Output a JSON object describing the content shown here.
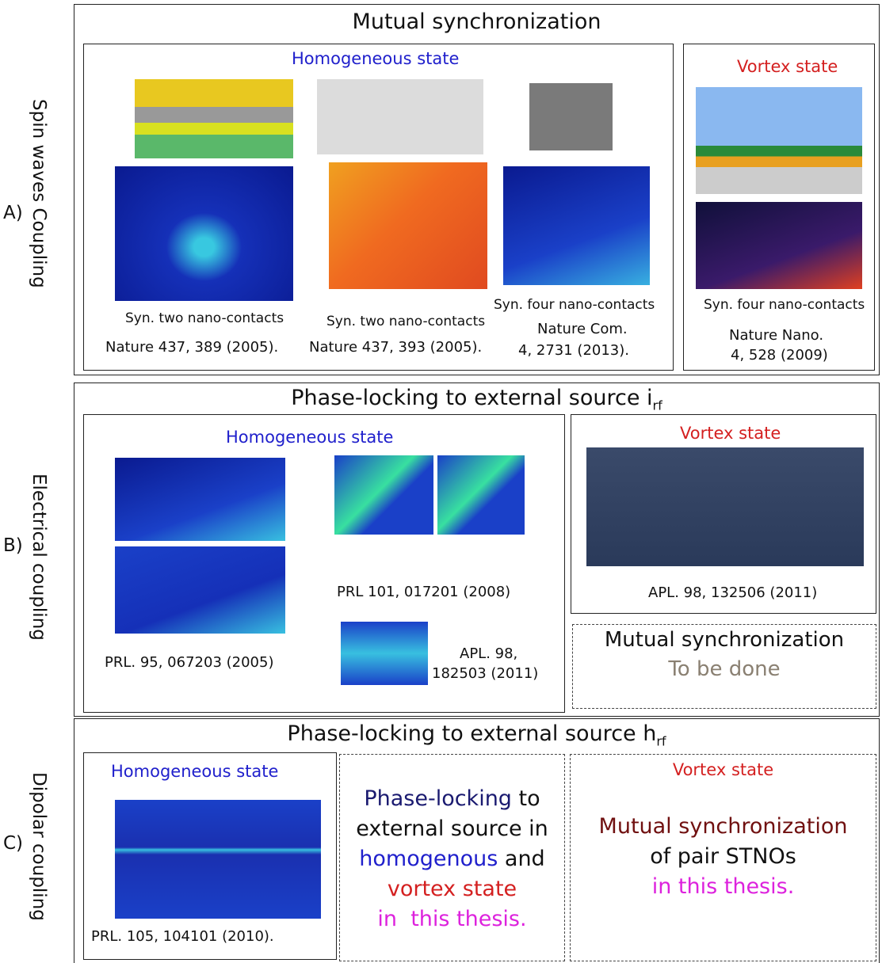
{
  "rows": [
    {
      "letter": "A)",
      "side_label": "Spin waves Coupling",
      "title": "Mutual synchronization",
      "left": {
        "heading": "Homogeneous state",
        "captions": [
          "Syn. two nano-contacts",
          "Syn. two nano-contacts",
          "Syn. four nano-contacts"
        ],
        "refs": [
          "Nature 437, 389 (2005).",
          "Nature 437, 393 (2005).",
          "Nature Com.",
          "4, 2731 (2013)."
        ]
      },
      "right": {
        "heading": "Vortex state",
        "caption": "Syn. four nano-contacts",
        "refs": [
          "Nature Nano.",
          "4, 528 (2009)"
        ]
      }
    },
    {
      "letter": "B)",
      "side_label": "Electrical coupling",
      "title": "Phase-locking to external source i",
      "title_sub": "rf",
      "left": {
        "heading": "Homogeneous state",
        "refs": [
          "PRL. 95, 067203 (2005)",
          "PRL 101, 017201 (2008)",
          "APL. 98,",
          "182503 (2011)"
        ]
      },
      "right": {
        "heading": "Vortex state",
        "refs": [
          "APL. 98, 132506 (2011)"
        ]
      },
      "todo": {
        "title": "Mutual synchronization",
        "note": "To be done"
      }
    },
    {
      "letter": "C)",
      "side_label": "Dipolar coupling",
      "title": "Phase-locking to external source h",
      "title_sub": "rf",
      "left": {
        "heading": "Homogeneous state",
        "refs": [
          "PRL. 105, 104101 (2010)."
        ]
      },
      "middle": {
        "lines": [
          [
            "Phase-locking",
            " to"
          ],
          [
            "external source in"
          ],
          [
            "homogenous",
            " and"
          ],
          [
            "vortex state"
          ],
          [
            "in  this thesis."
          ]
        ]
      },
      "right": {
        "heading": "Vortex state",
        "lines": [
          "Mutual synchronization",
          "of pair STNOs",
          "in this thesis."
        ]
      }
    }
  ]
}
